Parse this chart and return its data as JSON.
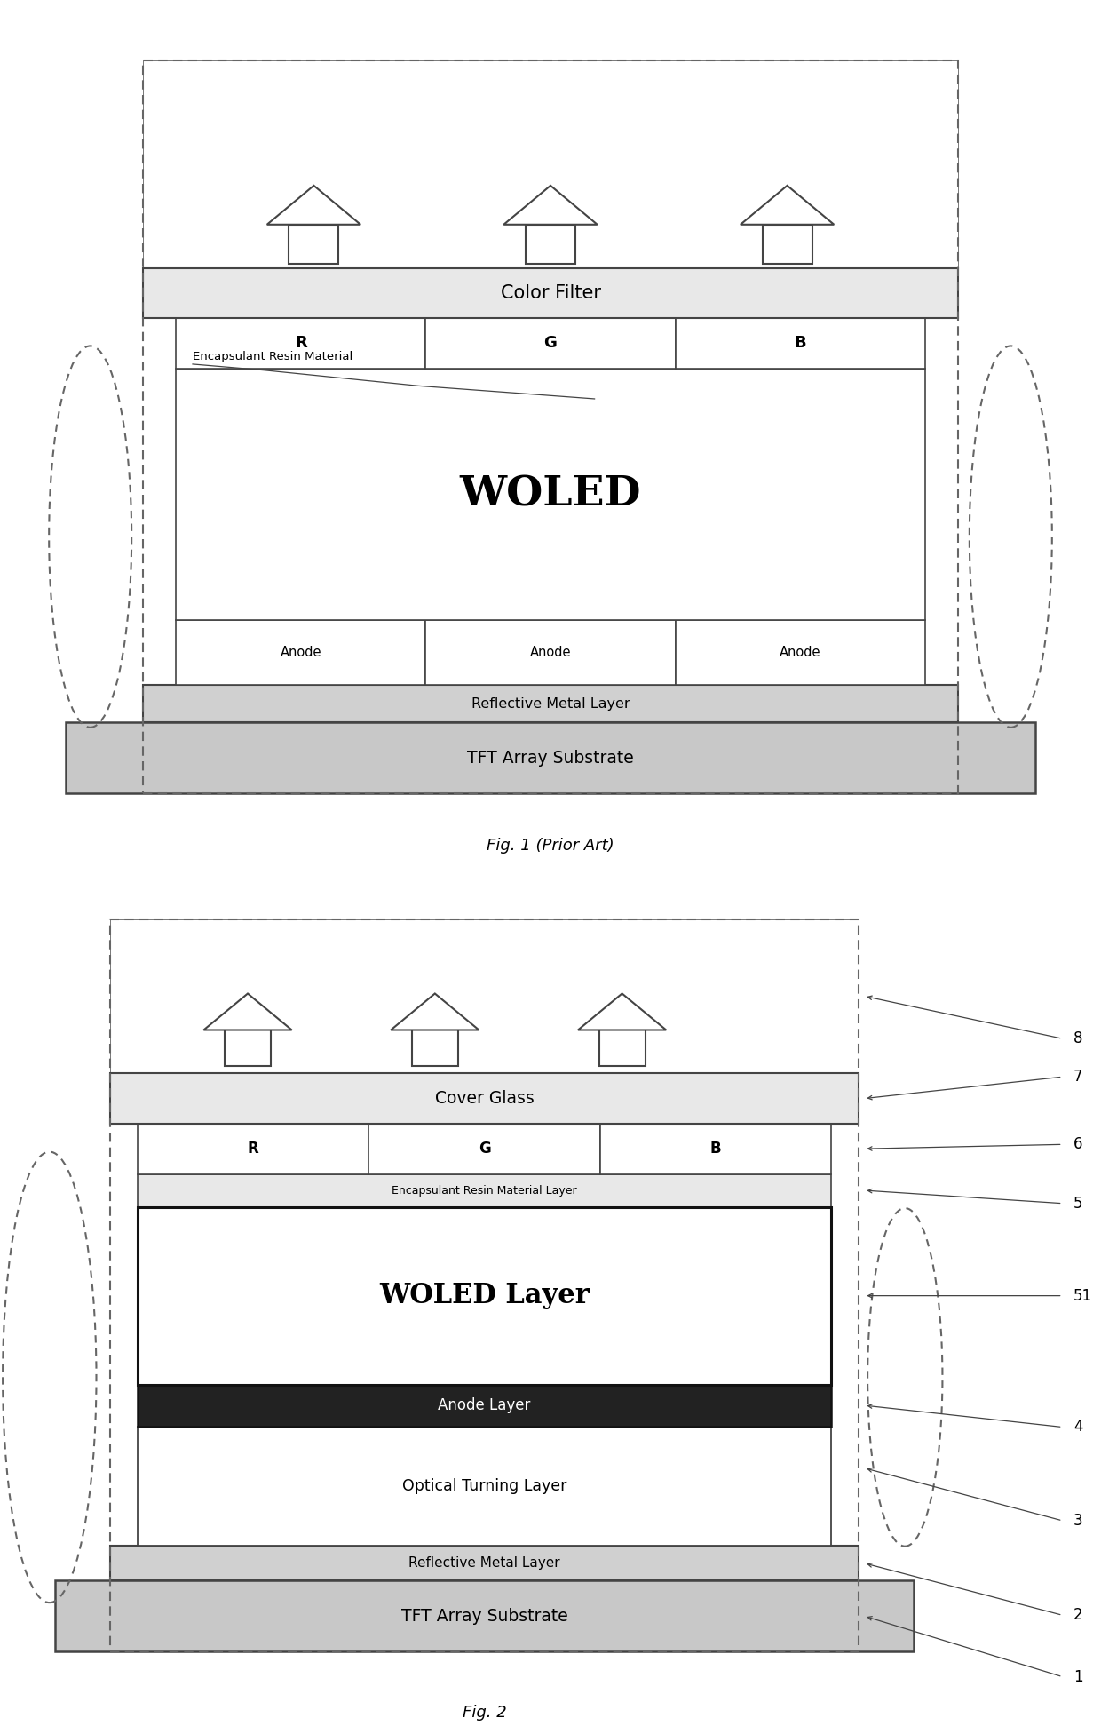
{
  "fig1": {
    "title": "Fig. 1 (Prior Art)",
    "color_filter_label": "Color Filter",
    "rgb_labels": [
      "R",
      "G",
      "B"
    ],
    "woled_label": "WOLED",
    "encapsulant_label": "Encapsulant Resin Material",
    "anode_label": "Anode",
    "reflective_label": "Reflective Metal Layer",
    "tft_label": "TFT Array Substrate"
  },
  "fig2": {
    "title": "Fig. 2",
    "cover_glass_label": "Cover Glass",
    "rgb_labels": [
      "R",
      "G",
      "B"
    ],
    "encapsulant_label": "Encapsulant Resin Material Layer",
    "woled_label": "WOLED Layer",
    "anode_label": "Anode Layer",
    "optical_label": "Optical Turning Layer",
    "reflective_label": "Reflective Metal Layer",
    "tft_label": "TFT Array Substrate",
    "ref_numbers": [
      "8",
      "7",
      "6",
      "5",
      "51",
      "4",
      "3",
      "2",
      "1"
    ]
  },
  "colors": {
    "background": "#ffffff",
    "edge": "#444444",
    "dashed_edge": "#666666",
    "dark_fill": "#222222",
    "light_gray": "#e8e8e8",
    "medium_gray": "#d0d0d0",
    "tft_gray": "#c8c8c8"
  }
}
